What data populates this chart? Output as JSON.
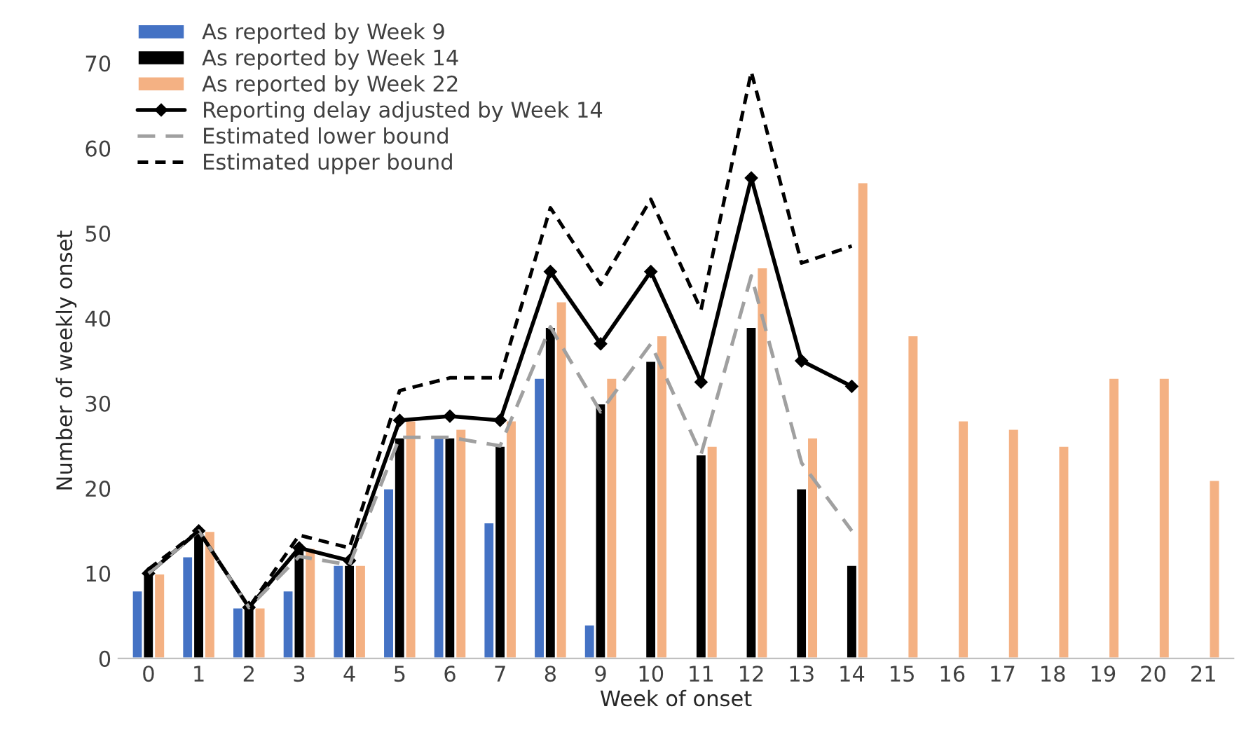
{
  "chart_data": {
    "type": "bar",
    "xlabel": "Week of onset",
    "ylabel": "Number of weekly onset",
    "categories": [
      "0",
      "1",
      "2",
      "3",
      "4",
      "5",
      "6",
      "7",
      "8",
      "9",
      "10",
      "11",
      "12",
      "13",
      "14",
      "15",
      "16",
      "17",
      "18",
      "19",
      "20",
      "21"
    ],
    "series": [
      {
        "name": "As reported by Week 9",
        "color": "#4472c4",
        "values": [
          8,
          12,
          6,
          8,
          11,
          20,
          26,
          16,
          33,
          4,
          null,
          null,
          null,
          null,
          null,
          null,
          null,
          null,
          null,
          null,
          null,
          null
        ]
      },
      {
        "name": "As reported by Week 14",
        "color": "#000000",
        "values": [
          10,
          15,
          6,
          13,
          11,
          26,
          26,
          25,
          39,
          30,
          35,
          24,
          39,
          20,
          11,
          null,
          null,
          null,
          null,
          null,
          null,
          null
        ]
      },
      {
        "name": "As reported by Week 22",
        "color": "#f4b183",
        "values": [
          10,
          15,
          6,
          13,
          11,
          28,
          27,
          28,
          42,
          33,
          38,
          25,
          46,
          26,
          56,
          38,
          28,
          27,
          25,
          33,
          33,
          21
        ]
      },
      {
        "name": "Reporting delay adjusted by Week 14",
        "type": "line",
        "color": "#000000",
        "marker": "diamond",
        "line_style": "solid",
        "values": [
          10,
          15,
          6,
          13,
          11.5,
          28,
          28.5,
          28,
          45.5,
          37,
          45.5,
          32.5,
          56.5,
          35,
          32,
          null,
          null,
          null,
          null,
          null,
          null,
          null
        ]
      },
      {
        "name": "Estimated lower bound",
        "type": "line",
        "color": "#a0a0a0",
        "marker": "none",
        "line_style": "dashed",
        "values": [
          10,
          15,
          6,
          12,
          11,
          26,
          26,
          25,
          39,
          29,
          37,
          24,
          45,
          23,
          15,
          null,
          null,
          null,
          null,
          null,
          null,
          null
        ]
      },
      {
        "name": "Estimated upper bound",
        "type": "line",
        "color": "#000000",
        "marker": "none",
        "line_style": "dotted",
        "values": [
          10.5,
          15,
          6,
          14.5,
          13,
          31.5,
          33,
          33,
          53,
          44,
          54,
          41,
          69,
          46.5,
          48.5,
          null,
          null,
          null,
          null,
          null,
          null,
          null
        ]
      }
    ],
    "ylim": [
      0,
      70
    ],
    "yticks": [
      0,
      10,
      20,
      30,
      40,
      50,
      60,
      70
    ],
    "grid": false,
    "legend": "top left"
  }
}
